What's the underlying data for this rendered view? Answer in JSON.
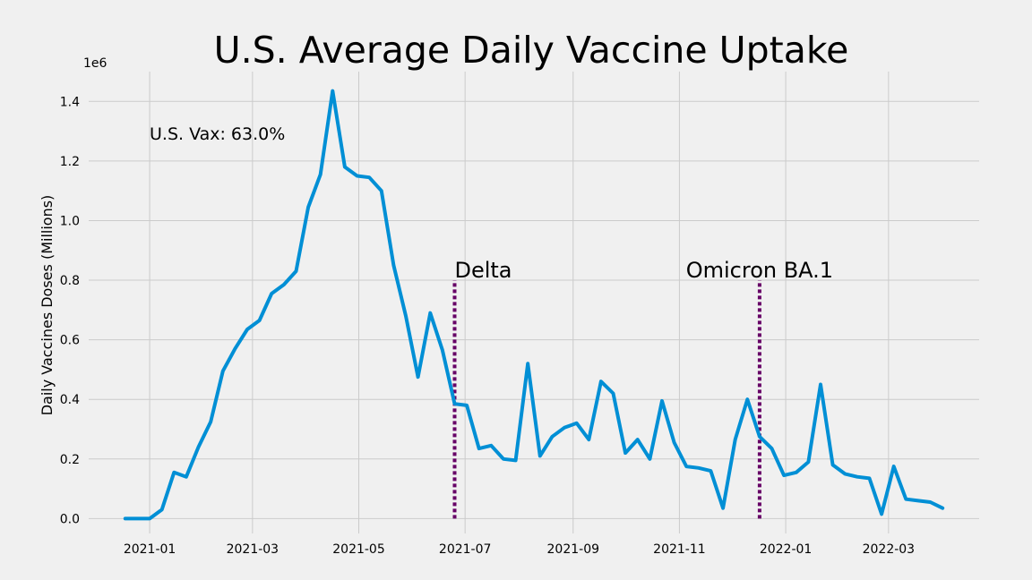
{
  "chart_data": {
    "type": "line",
    "title": "U.S. Average Daily Vaccine Uptake",
    "ylabel": "Daily Vaccines Doses (Millions)",
    "xlabel": "",
    "y_offset_label": "1e6",
    "xlim": [
      "2020-11-27",
      "2022-04-22"
    ],
    "ylim": [
      -50000,
      1500000
    ],
    "grid": true,
    "line_color": "#008fd5",
    "xticks": [
      "2021-01",
      "2021-03",
      "2021-05",
      "2021-07",
      "2021-09",
      "2021-11",
      "2022-01",
      "2022-03"
    ],
    "yticks": [
      0,
      200000,
      400000,
      600000,
      800000,
      1000000,
      1200000,
      1400000
    ],
    "ytick_labels": [
      "0.0",
      "0.2",
      "0.4",
      "0.6",
      "0.8",
      "1.0",
      "1.2",
      "1.4"
    ],
    "series": [
      {
        "x": [
          "2020-12-18",
          "2020-12-25",
          "2021-01-01",
          "2021-01-08",
          "2021-01-15",
          "2021-01-22",
          "2021-01-29",
          "2021-02-05",
          "2021-02-12",
          "2021-02-19",
          "2021-02-26",
          "2021-03-05",
          "2021-03-12",
          "2021-03-19",
          "2021-03-26",
          "2021-04-02",
          "2021-04-09",
          "2021-04-16",
          "2021-04-23",
          "2021-04-30",
          "2021-05-07",
          "2021-05-14",
          "2021-05-21",
          "2021-05-28",
          "2021-06-04",
          "2021-06-11",
          "2021-06-18",
          "2021-06-25",
          "2021-07-02",
          "2021-07-09",
          "2021-07-16",
          "2021-07-23",
          "2021-07-30",
          "2021-08-06",
          "2021-08-13",
          "2021-08-20",
          "2021-08-27",
          "2021-09-03",
          "2021-09-10",
          "2021-09-17",
          "2021-09-24",
          "2021-10-01",
          "2021-10-08",
          "2021-10-15",
          "2021-10-22",
          "2021-10-29",
          "2021-11-05",
          "2021-11-12",
          "2021-11-19",
          "2021-11-26",
          "2021-12-03",
          "2021-12-10",
          "2021-12-17",
          "2021-12-24",
          "2021-12-31",
          "2022-01-07",
          "2022-01-14",
          "2022-01-21",
          "2022-01-28",
          "2022-02-04",
          "2022-02-11",
          "2022-02-18",
          "2022-02-25",
          "2022-03-04",
          "2022-03-11",
          "2022-03-18",
          "2022-03-25",
          "2022-04-01"
        ],
        "values": [
          0,
          0,
          0,
          30000,
          155000,
          140000,
          240000,
          325000,
          495000,
          570000,
          635000,
          665000,
          755000,
          785000,
          830000,
          1045000,
          1155000,
          1435000,
          1180000,
          1150000,
          1145000,
          1100000,
          850000,
          680000,
          475000,
          690000,
          565000,
          385000,
          380000,
          235000,
          245000,
          200000,
          195000,
          520000,
          210000,
          275000,
          305000,
          320000,
          265000,
          460000,
          420000,
          220000,
          265000,
          200000,
          395000,
          255000,
          175000,
          170000,
          160000,
          35000,
          265000,
          400000,
          275000,
          235000,
          145000,
          155000,
          190000,
          450000,
          180000,
          150000,
          140000,
          135000,
          15000,
          175000,
          65000,
          60000,
          55000,
          35000
        ]
      }
    ],
    "annotations": [
      {
        "text": "U.S. Vax: 63.0%"
      },
      {
        "text": "Delta",
        "x": "2021-06-25",
        "line_ymax": 800000
      },
      {
        "text": "Omicron BA.1",
        "x": "2021-12-17",
        "line_ymax": 800000
      }
    ],
    "annotation_color": "#660066"
  }
}
